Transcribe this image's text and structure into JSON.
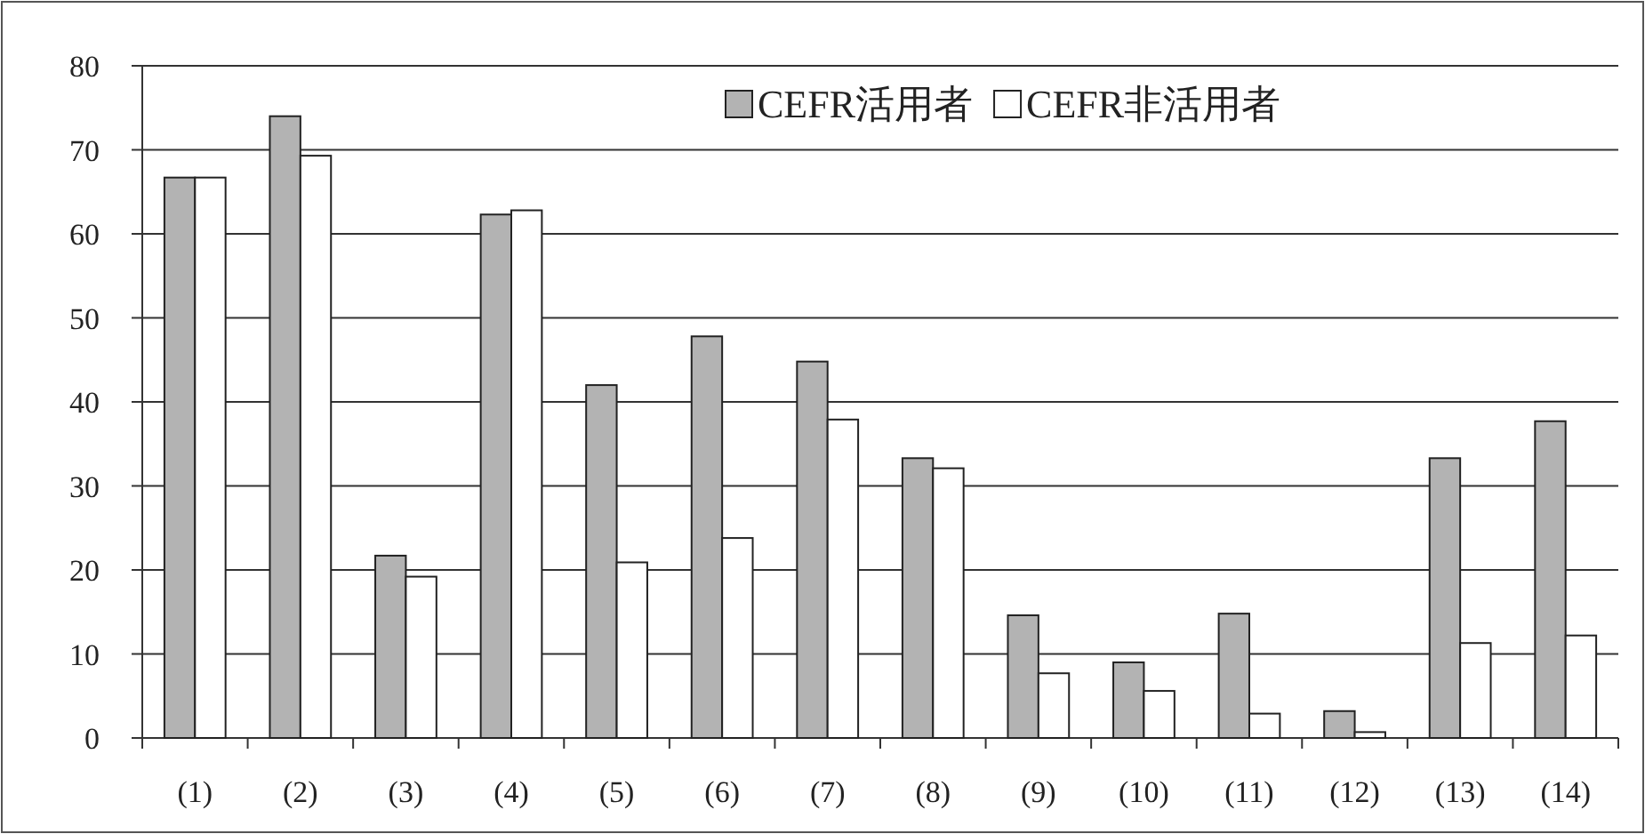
{
  "chart_data": {
    "type": "bar",
    "categories": [
      "(1)",
      "(2)",
      "(3)",
      "(4)",
      "(5)",
      "(6)",
      "(7)",
      "(8)",
      "(9)",
      "(10)",
      "(11)",
      "(12)",
      "(13)",
      "(14)"
    ],
    "series": [
      {
        "name": "CEFR活用者",
        "color": "#b3b3b3",
        "values": [
          66.7,
          74,
          21.7,
          62.3,
          42,
          47.8,
          44.8,
          33.3,
          14.6,
          9,
          14.8,
          3.2,
          33.3,
          37.7
        ]
      },
      {
        "name": "CEFR非活用者",
        "color": "#ffffff",
        "values": [
          66.7,
          69.3,
          19.2,
          62.8,
          20.9,
          23.8,
          37.9,
          32.1,
          7.7,
          5.6,
          2.9,
          0.7,
          11.3,
          12.2
        ]
      }
    ],
    "ylim": [
      0,
      80
    ],
    "yticks": [
      0,
      10,
      20,
      30,
      40,
      50,
      60,
      70,
      80
    ],
    "grid": "y",
    "legend": "top right"
  }
}
